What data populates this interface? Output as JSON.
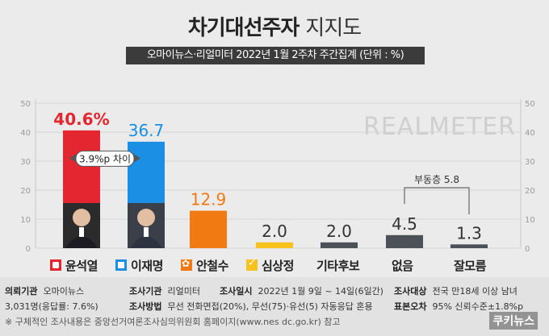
{
  "title": {
    "main": "차기대선주자",
    "sub": "지지도"
  },
  "subtitle": "오마이뉴스·리얼미터 2022년 1월 2주차 주간집계 (단위 : %)",
  "watermark": "REALMETER",
  "colors": {
    "red": "#e3262f",
    "blue": "#1a8fe3",
    "orange": "#f27a12",
    "yellow": "#f6c21b",
    "dark": "#4b5157"
  },
  "chart_data": {
    "type": "bar",
    "categories": [
      "윤석열",
      "이재명",
      "안철수",
      "심상정",
      "기타후보",
      "없음",
      "잘모름"
    ],
    "values": [
      40.6,
      36.7,
      12.9,
      2.0,
      2.0,
      4.5,
      1.3
    ],
    "value_labels": [
      "40.6%",
      "36.7",
      "12.9",
      "2.0",
      "2.0",
      "4.5",
      "1.3"
    ],
    "colors": [
      "#e3262f",
      "#1a8fe3",
      "#f27a12",
      "#f6c21b",
      "#4b5157",
      "#4b5157",
      "#4b5157"
    ],
    "yticks": [
      0,
      10,
      20,
      30,
      40,
      50
    ],
    "ylim": [
      0,
      50
    ],
    "annotations": [
      {
        "text": "3.9%p 차이"
      },
      {
        "text": "부동층 5.8"
      }
    ]
  },
  "legend": [
    {
      "label": "윤석열",
      "icon": "red-square-icon"
    },
    {
      "label": "이재명",
      "icon": "blue-square-icon"
    },
    {
      "label": "안철수",
      "icon": "orange-flower-icon"
    },
    {
      "label": "심상정",
      "icon": "yellow-check-icon"
    },
    {
      "label": "기타후보",
      "icon": ""
    },
    {
      "label": "없음",
      "icon": ""
    },
    {
      "label": "잘모름",
      "icon": ""
    }
  ],
  "footer": {
    "agency_label": "의뢰기관",
    "agency": "오마이뉴스",
    "org_label": "조사기관",
    "org": "리얼미터",
    "date_label": "조사일시",
    "date": "2022년 1월 9일 ~ 14일(6일간)",
    "target_label": "조사대상",
    "target": "전국 만18세 이상 남녀",
    "sample": "3,031명(응답률: 7.6%)",
    "method_label": "조사방법",
    "method": "무선 전화면접(20%), 무선(75)·유선(5) 자동응답 혼용",
    "error_label": "표본오차",
    "error": "95% 신뢰수준±1.8%p",
    "note": "※ 구체적인 조사내용은 중앙선거여론조사심의위원회 홈페이지(www.nes dc.go.kr) 참고",
    "brand": "쿠키뉴스"
  }
}
